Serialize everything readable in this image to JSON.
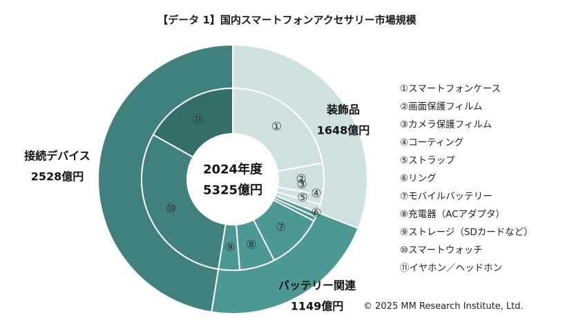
{
  "chart_data": {
    "type": "sunburst",
    "title": "【データ 1】国内スマートフォンアクセサリー市場規模",
    "center": {
      "line1": "2024年度",
      "line2": "5325億円"
    },
    "total": 5325,
    "groups": [
      {
        "name": "装飾品",
        "value_label": "1648億円",
        "value": 1648,
        "color": "#cfe0e1",
        "items": [
          {
            "marker": "①",
            "value": 1180,
            "color": "#cfe0e1"
          },
          {
            "marker": "②",
            "value": 300,
            "color": "#cfe0e1"
          },
          {
            "marker": "③",
            "value": 90,
            "color": "#cfe0e1"
          },
          {
            "marker": "④",
            "value": 78,
            "color": "#cfe0e1"
          }
        ]
      },
      {
        "name": "バッテリー関連",
        "value_label": "1149億円",
        "value": 1149,
        "color": "#4c9893",
        "items": [
          {
            "marker": "⑤",
            "value": 45,
            "color": "#4c9893"
          },
          {
            "marker": "⑥",
            "value": 40,
            "color": "#4c9893"
          },
          {
            "marker": "⑦",
            "value": 530,
            "color": "#4c9893"
          },
          {
            "marker": "⑧",
            "value": 335,
            "color": "#4c9893"
          },
          {
            "marker": "⑨",
            "value": 199,
            "color": "#4c9893"
          }
        ]
      },
      {
        "name": "接続デバイス",
        "value_label": "2528億円",
        "value": 2528,
        "color": "#40817d",
        "items": [
          {
            "marker": "⑩",
            "value": 1630,
            "color": "#40817d"
          },
          {
            "marker": "⑪",
            "value": 898,
            "color": "#346f6c"
          }
        ]
      }
    ],
    "legend": [
      "①スマートフォンケース",
      "②画面保護フィルム",
      "③カメラ保護フィルム",
      "④コーティング",
      "⑤ストラップ",
      "⑥リング",
      "⑦モバイルバッテリー",
      "⑧充電器（ACアダプタ）",
      "⑨ストレージ（SDカードなど）",
      "⑩スマートウォッチ",
      "⑪イヤホン／ヘッドホン"
    ]
  },
  "footer": {
    "copyright": "© 2025 MM Research Institute, Ltd."
  }
}
